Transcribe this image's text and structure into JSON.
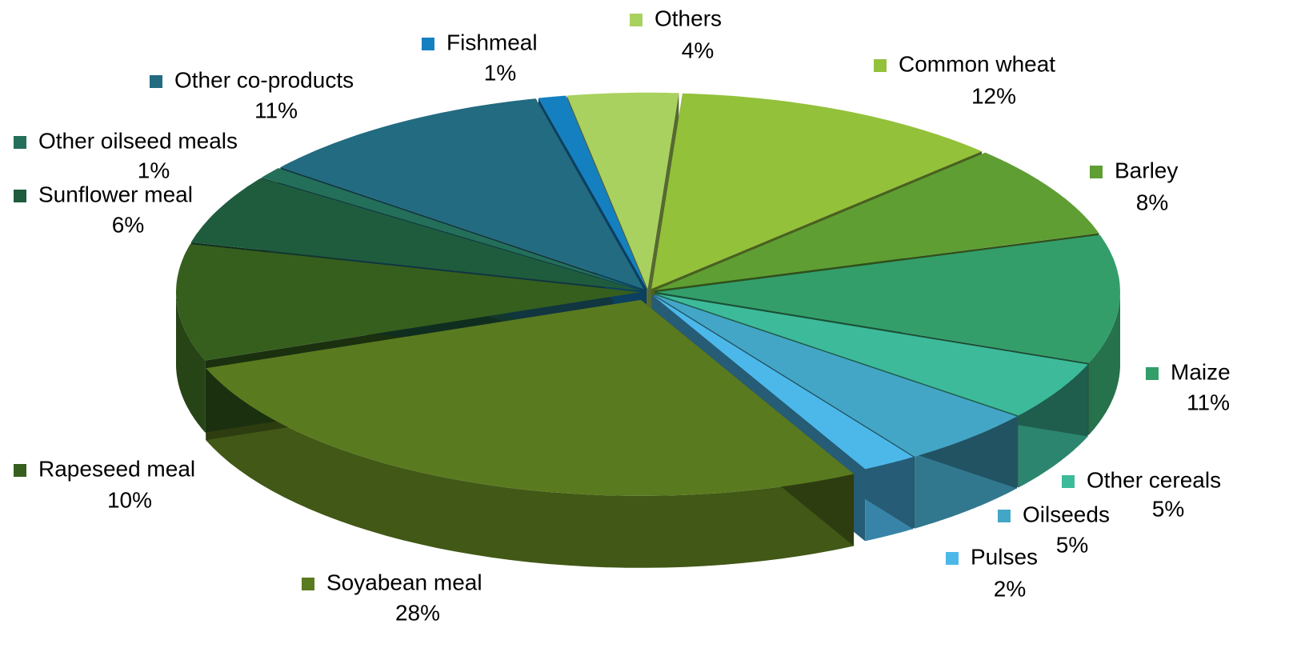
{
  "chart_data": {
    "type": "pie3d",
    "categories": [
      "Others",
      "Common wheat",
      "Barley",
      "Maize",
      "Other cereals",
      "Oilseeds",
      "Pulses",
      "Soyabean meal",
      "Rapeseed meal",
      "Sunflower meal",
      "Other oilseed meals",
      "Other co-products",
      "Fishmeal"
    ],
    "values": [
      4,
      12,
      8,
      11,
      5,
      5,
      2,
      28,
      10,
      6,
      1,
      11,
      1
    ],
    "value_labels": [
      "4%",
      "12%",
      "8%",
      "11%",
      "5%",
      "5%",
      "2%",
      "28%",
      "10%",
      "6%",
      "1%",
      "11%",
      "1%"
    ],
    "colors": [
      "#a9d15f",
      "#93c13a",
      "#5f9e33",
      "#339e6a",
      "#3dba9a",
      "#44a6c6",
      "#4cb8ea",
      "#5a7a1f",
      "#365f1e",
      "#1f5c3e",
      "#236f5a",
      "#226b80",
      "#1580c0"
    ]
  }
}
